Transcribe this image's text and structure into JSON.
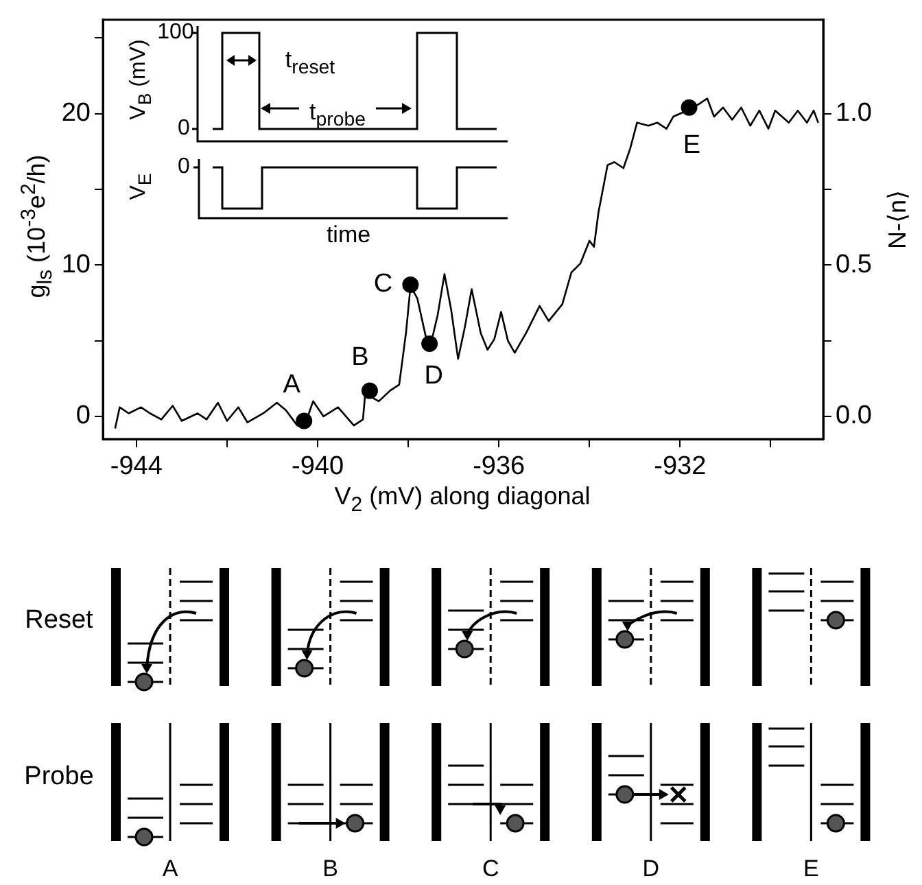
{
  "chart_data": {
    "type": "line",
    "xlabel": "V$_{2}$ (mV) along diagonal",
    "ylabel": "g$_{ls}$ (10$^{-3}$e$^{2}$/h)",
    "y2label": "N-⟨n⟩",
    "xlim": [
      -944.74,
      -928.84
    ],
    "ylim": [
      -1.5,
      26.2
    ],
    "y2lim": [
      -0.075,
      1.31
    ],
    "xticks": [
      -944,
      {
        "value": -942,
        "label": null
      },
      -940,
      {
        "value": -938,
        "label": null
      },
      -936,
      {
        "value": -934,
        "label": null
      },
      -932,
      {
        "value": -930,
        "label": null
      }
    ],
    "yticks": [
      0,
      {
        "value": 5,
        "label": null
      },
      10,
      {
        "value": 15,
        "label": null
      },
      20,
      {
        "value": 25,
        "label": null
      }
    ],
    "y2ticks": [
      {
        "value": 0,
        "label": "0.0"
      },
      {
        "value": 0.25,
        "label": null
      },
      {
        "value": 0.5,
        "label": "0.5"
      },
      {
        "value": 0.75,
        "label": null
      },
      {
        "value": 1,
        "label": "1.0"
      }
    ],
    "grid": false,
    "legend": false,
    "line_style": "solid",
    "series": [
      {
        "type": "line",
        "color": "#000000",
        "x": [
          -944.47,
          -944.37,
          -944.17,
          -943.9,
          -943.7,
          -943.45,
          -943.2,
          -943.0,
          -942.65,
          -942.45,
          -942.2,
          -942.0,
          -941.75,
          -941.55,
          -941.2,
          -940.9,
          -940.7,
          -940.45,
          -940.25,
          -940.1,
          -939.87,
          -939.55,
          -939.2,
          -939.0,
          -938.95,
          -938.65,
          -938.4,
          -938.2,
          -938.05,
          -937.95,
          -937.8,
          -937.6,
          -937.5,
          -937.35,
          -937.2,
          -937.05,
          -936.9,
          -936.75,
          -936.6,
          -936.4,
          -936.25,
          -936.1,
          -935.95,
          -935.8,
          -935.65,
          -935.4,
          -935.1,
          -934.9,
          -934.6,
          -934.4,
          -934.2,
          -934.0,
          -933.9,
          -933.8,
          -933.6,
          -933.45,
          -933.25,
          -933.1,
          -932.95,
          -932.7,
          -932.5,
          -932.3,
          -932.15,
          -931.85,
          -931.6,
          -931.4,
          -931.25,
          -931.05,
          -930.85,
          -930.65,
          -930.45,
          -930.25,
          -930.05,
          -929.9,
          -929.6,
          -929.4,
          -929.2,
          -929.05,
          -928.95
        ],
        "values": [
          -0.8,
          0.6,
          0.2,
          0.6,
          0.2,
          -0.2,
          0.7,
          -0.3,
          0.2,
          -0.2,
          0.9,
          -0.3,
          0.6,
          -0.4,
          0.2,
          0.9,
          0.4,
          -0.6,
          -0.3,
          1.0,
          0,
          0.6,
          -0.6,
          -0.2,
          1.5,
          1.0,
          1.7,
          2.1,
          5.5,
          8.6,
          7.8,
          5.1,
          4.8,
          6.7,
          9.4,
          7.0,
          3.8,
          5.9,
          8.4,
          5.5,
          4.4,
          5.1,
          6.9,
          5.0,
          4.2,
          5.5,
          7.3,
          6.3,
          7.4,
          9.5,
          10.1,
          11.6,
          11.2,
          13.5,
          16.6,
          16.8,
          16.4,
          17.7,
          19.4,
          19.2,
          19.4,
          19.0,
          19.8,
          20.2,
          20.6,
          21.0,
          19.8,
          20.4,
          19.6,
          20.4,
          19.2,
          20.2,
          19.0,
          20.2,
          19.4,
          20.2,
          19.4,
          20.2,
          19.4
        ]
      },
      {
        "type": "scatter",
        "color": "#000000",
        "marker": "circle",
        "x": [
          -940.3,
          -938.85,
          -937.95,
          -937.53,
          -931.8
        ],
        "values": [
          -0.3,
          1.7,
          8.7,
          4.8,
          20.4
        ]
      }
    ],
    "annotations": [
      {
        "text": "A",
        "x": -940.3,
        "y": -0.3
      },
      {
        "text": "B",
        "x": -938.85,
        "y": 1.7
      },
      {
        "text": "C",
        "x": -937.95,
        "y": 8.7
      },
      {
        "text": "D",
        "x": -937.53,
        "y": 4.8
      },
      {
        "text": "E",
        "x": -931.8,
        "y": 20.4
      },
      "100",
      "0",
      "0",
      "V$_{B}$ (mV)",
      "V$_{E}$",
      "t$_{reset}$",
      "t$_{probe}$",
      "time",
      "Reset",
      "Probe",
      "A",
      "B",
      "C",
      "D",
      "E"
    ]
  }
}
